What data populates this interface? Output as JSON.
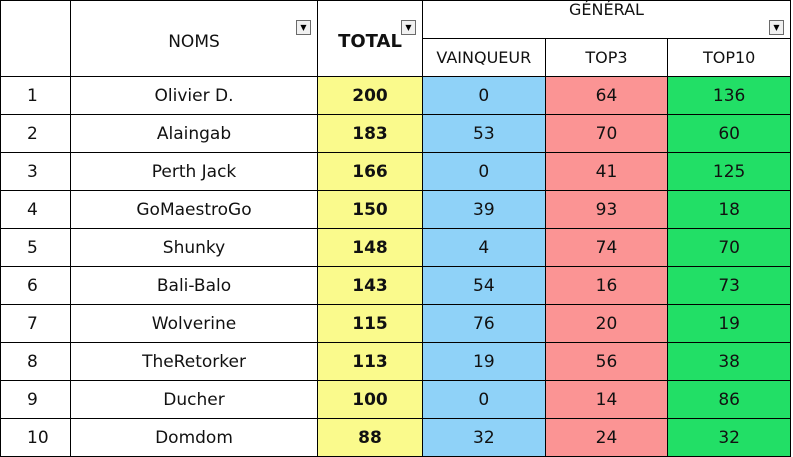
{
  "headers": {
    "noms": "NOMS",
    "total": "TOTAL",
    "general": "GÉNÉRAL",
    "vainqueur": "VAINQUEUR",
    "top3": "TOP3",
    "top10": "TOP10"
  },
  "filter_icon": "▼",
  "colors": {
    "total": "#fafa8c",
    "vainqueur": "#8fd2f8",
    "top3": "#fb9494",
    "top10": "#22df66"
  },
  "rows": [
    {
      "rank": "1",
      "name": "Olivier  D.",
      "total": "200",
      "vainqueur": "0",
      "top3": "64",
      "top10": "136"
    },
    {
      "rank": "2",
      "name": "Alaingab",
      "total": "183",
      "vainqueur": "53",
      "top3": "70",
      "top10": "60"
    },
    {
      "rank": "3",
      "name": "Perth  Jack",
      "total": "166",
      "vainqueur": "0",
      "top3": "41",
      "top10": "125"
    },
    {
      "rank": "4",
      "name": "GoMaestroGo",
      "total": "150",
      "vainqueur": "39",
      "top3": "93",
      "top10": "18"
    },
    {
      "rank": "5",
      "name": "Shunky",
      "total": "148",
      "vainqueur": "4",
      "top3": "74",
      "top10": "70"
    },
    {
      "rank": "6",
      "name": "Bali-Balo",
      "total": "143",
      "vainqueur": "54",
      "top3": "16",
      "top10": "73"
    },
    {
      "rank": "7",
      "name": "Wolverine",
      "total": "115",
      "vainqueur": "76",
      "top3": "20",
      "top10": "19"
    },
    {
      "rank": "8",
      "name": "TheRetorker",
      "total": "113",
      "vainqueur": "19",
      "top3": "56",
      "top10": "38"
    },
    {
      "rank": "9",
      "name": "Ducher",
      "total": "100",
      "vainqueur": "0",
      "top3": "14",
      "top10": "86"
    },
    {
      "rank": "10",
      "name": "Domdom",
      "total": "88",
      "vainqueur": "32",
      "top3": "24",
      "top10": "32"
    }
  ]
}
